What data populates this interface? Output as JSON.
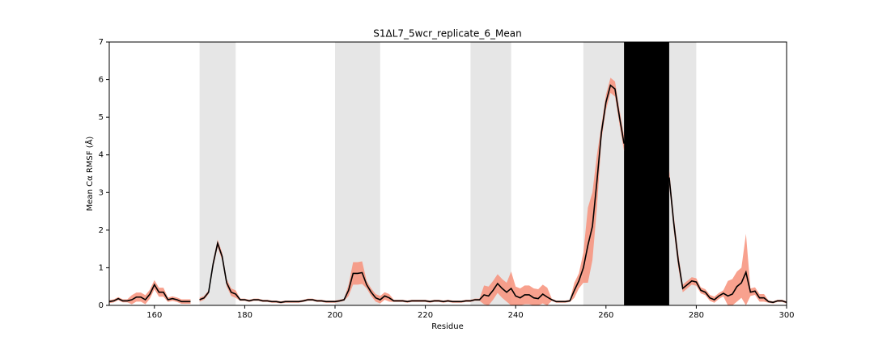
{
  "chart_data": {
    "type": "line",
    "title": "S1ΔL7_5wcr_replicate_6_Mean",
    "x_label": "Residue",
    "y_label": "Mean Cα RMSF (Å)",
    "xlim": [
      150,
      300
    ],
    "ylim": [
      0,
      7
    ],
    "xticks": [
      160,
      180,
      200,
      220,
      240,
      260,
      280,
      300
    ],
    "yticks": [
      0,
      1,
      2,
      3,
      4,
      5,
      6,
      7
    ],
    "shaded_regions": [
      {
        "start": 170,
        "end": 178,
        "color": "#e6e6e6"
      },
      {
        "start": 200,
        "end": 210,
        "color": "#e6e6e6"
      },
      {
        "start": 230,
        "end": 239,
        "color": "#e6e6e6"
      },
      {
        "start": 255,
        "end": 280,
        "color": "#e6e6e6"
      },
      {
        "start": 264,
        "end": 274,
        "color": "#000000"
      }
    ],
    "x": [
      150,
      151,
      152,
      153,
      154,
      155,
      156,
      157,
      158,
      159,
      160,
      161,
      162,
      163,
      164,
      165,
      166,
      167,
      168,
      169,
      170,
      171,
      172,
      173,
      174,
      175,
      176,
      177,
      178,
      179,
      180,
      181,
      182,
      183,
      184,
      185,
      186,
      187,
      188,
      189,
      190,
      191,
      192,
      193,
      194,
      195,
      196,
      197,
      198,
      199,
      200,
      201,
      202,
      203,
      204,
      205,
      206,
      207,
      208,
      209,
      210,
      211,
      212,
      213,
      214,
      215,
      216,
      217,
      218,
      219,
      220,
      221,
      222,
      223,
      224,
      225,
      226,
      227,
      228,
      229,
      230,
      231,
      232,
      233,
      234,
      235,
      236,
      237,
      238,
      239,
      240,
      241,
      242,
      243,
      244,
      245,
      246,
      247,
      248,
      249,
      250,
      251,
      252,
      253,
      254,
      255,
      256,
      257,
      258,
      259,
      260,
      261,
      262,
      263,
      264,
      265,
      266,
      267,
      268,
      269,
      270,
      271,
      272,
      273,
      274,
      275,
      276,
      277,
      278,
      279,
      280,
      281,
      282,
      283,
      284,
      285,
      286,
      287,
      288,
      289,
      290,
      291,
      292,
      293,
      294,
      295,
      296,
      297,
      298,
      299,
      300
    ],
    "band_color": "#f7907a",
    "band_upper": [
      0.14,
      0.16,
      0.22,
      0.16,
      0.16,
      0.27,
      0.34,
      0.34,
      0.27,
      0.42,
      0.67,
      0.47,
      0.47,
      0.21,
      0.24,
      0.21,
      0.16,
      0.16,
      0.16,
      null,
      0.2,
      0.25,
      0.4,
      1.2,
      1.75,
      1.4,
      0.7,
      0.45,
      0.4,
      0.18,
      0.18,
      0.15,
      0.18,
      0.18,
      0.15,
      0.15,
      0.13,
      0.13,
      0.11,
      0.13,
      0.13,
      0.13,
      0.13,
      0.15,
      0.18,
      0.18,
      0.15,
      0.15,
      0.13,
      0.13,
      0.13,
      0.15,
      0.18,
      0.55,
      1.15,
      1.15,
      1.17,
      0.65,
      0.45,
      0.3,
      0.25,
      0.35,
      0.3,
      0.15,
      0.15,
      0.15,
      0.13,
      0.15,
      0.15,
      0.15,
      0.15,
      0.13,
      0.15,
      0.15,
      0.13,
      0.15,
      0.13,
      0.13,
      0.13,
      0.15,
      0.15,
      0.18,
      0.18,
      0.53,
      0.5,
      0.65,
      0.83,
      0.7,
      0.6,
      0.9,
      0.5,
      0.45,
      0.53,
      0.53,
      0.45,
      0.43,
      0.55,
      0.47,
      0.18,
      0.13,
      0.13,
      0.13,
      0.15,
      0.6,
      0.85,
      1.4,
      2.6,
      3.0,
      4.0,
      4.8,
      5.6,
      6.05,
      5.95,
      5.2,
      4.5,
      null,
      null,
      null,
      null,
      null,
      null,
      null,
      null,
      null,
      3.6,
      2.4,
      1.4,
      0.55,
      0.65,
      0.75,
      0.72,
      0.48,
      0.43,
      0.28,
      0.23,
      0.33,
      0.4,
      0.65,
      0.7,
      0.9,
      1.0,
      1.9,
      0.45,
      0.48,
      0.3,
      0.3,
      0.13,
      0.11,
      0.15,
      0.15,
      0.11
    ],
    "band_lower": [
      0.06,
      0.08,
      0.14,
      0.08,
      0.08,
      0.03,
      0.1,
      0.1,
      0.03,
      0.18,
      0.43,
      0.23,
      0.23,
      0.09,
      0.12,
      0.09,
      0.04,
      0.04,
      0.04,
      null,
      0.1,
      0.15,
      0.3,
      1.0,
      1.55,
      1.2,
      0.5,
      0.25,
      0.2,
      0.12,
      0.12,
      0.09,
      0.12,
      0.12,
      0.09,
      0.09,
      0.07,
      0.07,
      0.05,
      0.07,
      0.07,
      0.07,
      0.07,
      0.09,
      0.12,
      0.12,
      0.09,
      0.09,
      0.07,
      0.07,
      0.07,
      0.09,
      0.12,
      0.25,
      0.55,
      0.55,
      0.57,
      0.45,
      0.25,
      0.1,
      0.05,
      0.15,
      0.1,
      0.09,
      0.09,
      0.09,
      0.07,
      0.09,
      0.09,
      0.09,
      0.09,
      0.07,
      0.09,
      0.09,
      0.07,
      0.09,
      0.07,
      0.07,
      0.07,
      0.09,
      0.09,
      0.12,
      0.12,
      0.03,
      0,
      0.15,
      0.33,
      0.2,
      0.1,
      0,
      0,
      0,
      0.03,
      0.03,
      0,
      0,
      0.05,
      0,
      0.12,
      0.07,
      0.07,
      0.07,
      0.09,
      0.2,
      0.45,
      0.6,
      0.6,
      1.2,
      2.6,
      4.4,
      5.2,
      5.65,
      5.55,
      4.8,
      4.1,
      null,
      null,
      null,
      null,
      null,
      null,
      null,
      null,
      null,
      3.2,
      2.0,
      1.0,
      0.35,
      0.45,
      0.55,
      0.52,
      0.32,
      0.27,
      0.12,
      0.07,
      0.17,
      0.24,
      0,
      0,
      0.1,
      0.2,
      0,
      0.25,
      0.28,
      0.1,
      0.1,
      0.07,
      0.05,
      0.09,
      0.09,
      0.05
    ],
    "series": [
      {
        "color": "#000000",
        "values": [
          0.1,
          0.12,
          0.18,
          0.12,
          0.12,
          0.15,
          0.22,
          0.22,
          0.15,
          0.3,
          0.55,
          0.35,
          0.35,
          0.15,
          0.18,
          0.15,
          0.1,
          0.1,
          0.1,
          null,
          0.15,
          0.2,
          0.35,
          1.1,
          1.65,
          1.3,
          0.6,
          0.35,
          0.3,
          0.15,
          0.15,
          0.12,
          0.15,
          0.15,
          0.12,
          0.12,
          0.1,
          0.1,
          0.08,
          0.1,
          0.1,
          0.1,
          0.1,
          0.12,
          0.15,
          0.15,
          0.12,
          0.12,
          0.1,
          0.1,
          0.1,
          0.12,
          0.15,
          0.4,
          0.85,
          0.85,
          0.87,
          0.55,
          0.35,
          0.2,
          0.15,
          0.25,
          0.2,
          0.12,
          0.12,
          0.12,
          0.1,
          0.12,
          0.12,
          0.12,
          0.12,
          0.1,
          0.12,
          0.12,
          0.1,
          0.12,
          0.1,
          0.1,
          0.1,
          0.12,
          0.12,
          0.15,
          0.15,
          0.28,
          0.25,
          0.4,
          0.58,
          0.45,
          0.35,
          0.45,
          0.25,
          0.2,
          0.28,
          0.28,
          0.2,
          0.18,
          0.3,
          0.22,
          0.15,
          0.1,
          0.1,
          0.1,
          0.12,
          0.4,
          0.65,
          1.0,
          1.6,
          2.1,
          3.3,
          4.6,
          5.4,
          5.85,
          5.75,
          5.0,
          4.3,
          null,
          null,
          null,
          null,
          null,
          null,
          null,
          null,
          null,
          3.4,
          2.2,
          1.2,
          0.45,
          0.55,
          0.65,
          0.62,
          0.4,
          0.35,
          0.2,
          0.15,
          0.25,
          0.32,
          0.25,
          0.3,
          0.5,
          0.6,
          0.88,
          0.35,
          0.38,
          0.2,
          0.2,
          0.1,
          0.08,
          0.12,
          0.12,
          0.08
        ]
      }
    ]
  }
}
